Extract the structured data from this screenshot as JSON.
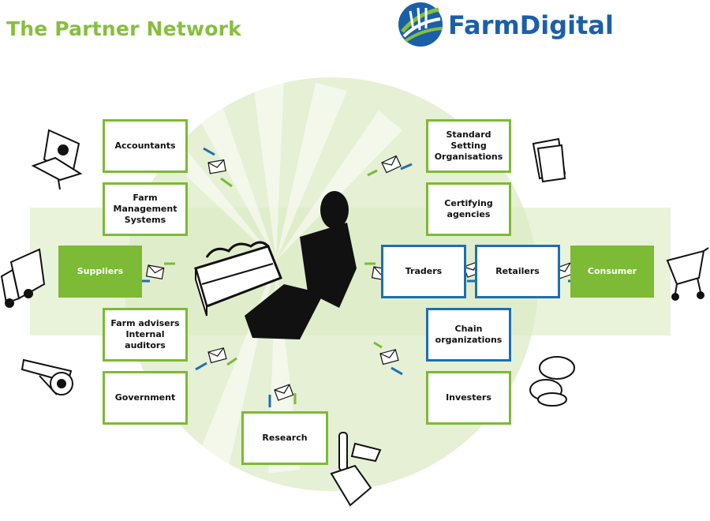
{
  "header": {
    "title": "The Partner Network",
    "logo_part1": "Farm",
    "logo_part2": "Digital"
  },
  "nodes": {
    "accountants": "Accountants",
    "farm_management_systems": "Farm\nManagement\nSystems",
    "suppliers": "Suppliers",
    "farm_advisers": "Farm advisers\nInternal auditors",
    "government": "Government",
    "research": "Research",
    "standard_setting": "Standard Setting\nOrganisations",
    "certifying": "Certifying\nagencies",
    "traders": "Traders",
    "retailers": "Retailers",
    "consumer": "Consumer",
    "chain": "Chain\norganizations",
    "investers": "Investers"
  },
  "colors": {
    "green": "#7dba35",
    "blue": "#1b6fb4",
    "light_green": "#e9f3da"
  },
  "icons": [
    "laptop-icon",
    "truck-icon",
    "cannon-icon",
    "paper-stack-icon",
    "shopping-cart-icon",
    "coins-icon",
    "test-tube-hand-icon",
    "farmer-with-crate-icon",
    "envelope-icon"
  ]
}
